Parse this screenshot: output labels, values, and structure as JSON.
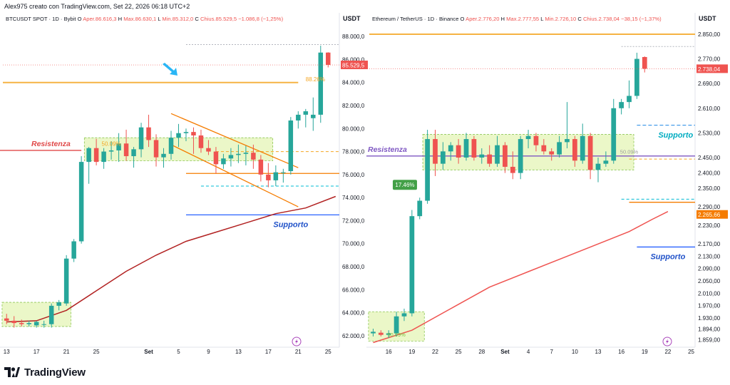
{
  "author_line": "Alex975 creato con TradingView.com, Set 22, 2026 06:18 UTC+2",
  "footer": {
    "brand": "TradingView"
  },
  "colors": {
    "up": "#26a69a",
    "down": "#ef5350",
    "orange": "#f5a623",
    "ma": "#b22222",
    "ma_eth": "#ef5350",
    "resist": "#e04848",
    "support_blue": "#2962ff",
    "cyan": "#00bcd4",
    "zone_fill": "#e9f7c3",
    "zone_stroke": "#7fbf3f",
    "purple": "#7e57c2"
  },
  "chart_data": [
    {
      "type": "candlestick",
      "header": {
        "symbol": "BTCUSDT SPOT · 1D · Bybit",
        "open_label": "O",
        "open": "Aper.86.616,3",
        "high_label": "H",
        "high": "Max.86.630,1",
        "low_label": "L",
        "low": "Min.85.312,0",
        "close_label": "C",
        "close": "Chius.85.529,5",
        "change": "−1.086,8 (−1,25%)"
      },
      "currency": "USDT",
      "ylim": [
        61000,
        89000
      ],
      "y_ticks": [
        {
          "v": 62000,
          "label": "62.000,0"
        },
        {
          "v": 64000,
          "label": "64.000,0"
        },
        {
          "v": 66000,
          "label": "66.000,0"
        },
        {
          "v": 68000,
          "label": "68.000,0"
        },
        {
          "v": 70000,
          "label": "70.000,0"
        },
        {
          "v": 72000,
          "label": "72.000,0"
        },
        {
          "v": 74000,
          "label": "74.000,0"
        },
        {
          "v": 76000,
          "label": "76.000,0"
        },
        {
          "v": 78000,
          "label": "78.000,0"
        },
        {
          "v": 80000,
          "label": "80.000,0"
        },
        {
          "v": 82000,
          "label": "82.000,0"
        },
        {
          "v": 84000,
          "label": "84.000,0"
        },
        {
          "v": 86000,
          "label": "86.000,0"
        },
        {
          "v": 88000,
          "label": "88.000,0"
        }
      ],
      "price_label": {
        "v": 85529.5,
        "text": "85.529,5"
      },
      "x_ticks": [
        {
          "i": 0,
          "label": "13"
        },
        {
          "i": 4,
          "label": "17"
        },
        {
          "i": 8,
          "label": "21"
        },
        {
          "i": 12,
          "label": "25"
        },
        {
          "i": 19,
          "label": "Set"
        },
        {
          "i": 23,
          "label": "5"
        },
        {
          "i": 27,
          "label": "9"
        },
        {
          "i": 31,
          "label": "13"
        },
        {
          "i": 35,
          "label": "17"
        },
        {
          "i": 39,
          "label": "21"
        },
        {
          "i": 43,
          "label": "25"
        }
      ],
      "candles": [
        [
          63500,
          63900,
          63000,
          63300
        ],
        [
          63300,
          63700,
          62700,
          63100
        ],
        [
          63100,
          63400,
          62800,
          63000
        ],
        [
          63000,
          63300,
          62800,
          63100
        ],
        [
          62900,
          63300,
          62700,
          63200
        ],
        [
          63000,
          63300,
          62700,
          63000
        ],
        [
          63000,
          64800,
          62700,
          64600
        ],
        [
          64600,
          65100,
          64200,
          64900
        ],
        [
          64800,
          69000,
          64600,
          68700
        ],
        [
          68700,
          70400,
          68400,
          70200
        ],
        [
          70200,
          77600,
          70000,
          77100
        ],
        [
          77100,
          78400,
          75200,
          78300
        ],
        [
          78300,
          79100,
          76800,
          77100
        ],
        [
          77100,
          78300,
          76500,
          78000
        ],
        [
          78000,
          78900,
          77300,
          78100
        ],
        [
          78100,
          79600,
          77100,
          78700
        ],
        [
          78700,
          79900,
          77200,
          77600
        ],
        [
          77600,
          78400,
          76600,
          78200
        ],
        [
          78200,
          80500,
          77500,
          80100
        ],
        [
          80100,
          81200,
          78400,
          79000
        ],
        [
          79000,
          79500,
          76700,
          77500
        ],
        [
          77500,
          78300,
          76600,
          77800
        ],
        [
          77800,
          79800,
          77300,
          79200
        ],
        [
          79200,
          80400,
          78400,
          79600
        ],
        [
          79600,
          80000,
          78900,
          79700
        ],
        [
          79700,
          80100,
          77800,
          79400
        ],
        [
          79400,
          79900,
          77900,
          78300
        ],
        [
          78300,
          79000,
          77700,
          78000
        ],
        [
          78000,
          78400,
          76100,
          76900
        ],
        [
          76900,
          77800,
          76500,
          77400
        ],
        [
          77400,
          78300,
          76700,
          77700
        ],
        [
          77700,
          78600,
          77000,
          77800
        ],
        [
          77800,
          78500,
          76800,
          77900
        ],
        [
          77900,
          78600,
          76500,
          77300
        ],
        [
          77300,
          77700,
          75400,
          76000
        ],
        [
          76000,
          77000,
          74900,
          75500
        ],
        [
          75500,
          76800,
          75000,
          76200
        ],
        [
          76200,
          76500,
          75300,
          76200
        ],
        [
          76300,
          81000,
          76000,
          80700
        ],
        [
          80700,
          81500,
          80000,
          81200
        ],
        [
          81200,
          81700,
          80100,
          81500
        ],
        [
          80900,
          82700,
          79800,
          81200
        ],
        [
          81200,
          87200,
          80500,
          86600
        ],
        [
          86600,
          86630,
          85312,
          85530
        ]
      ],
      "ma": [
        [
          0,
          63200
        ],
        [
          4,
          63300
        ],
        [
          8,
          64200
        ],
        [
          12,
          65900
        ],
        [
          16,
          67600
        ],
        [
          20,
          69000
        ],
        [
          24,
          70200
        ],
        [
          28,
          71000
        ],
        [
          32,
          71800
        ],
        [
          36,
          72600
        ],
        [
          40,
          73100
        ],
        [
          44,
          74100
        ]
      ],
      "annotations": {
        "resistenza": {
          "text": "Resistenza",
          "price": 78100
        },
        "supporto": {
          "text": "Supporto",
          "price": 72500
        },
        "orange_level": 84000,
        "pct_label": "88.26%",
        "zone_low_label": "50.09%",
        "upper_dotted": 87300,
        "orange_dashed": 78000,
        "cyan_dashed": 75000,
        "orange_level2": 76100,
        "zone": {
          "x0": 11,
          "x1": 35,
          "p0": 77200,
          "p1": 79200
        },
        "zone_small": {
          "x0": 0,
          "x1": 8,
          "p0": 62800,
          "p1": 64900
        },
        "channel_upper": [
          [
            22,
            81300
          ],
          [
            39,
            76600
          ]
        ],
        "channel_lower": [
          [
            22,
            78600
          ],
          [
            39,
            73200
          ]
        ]
      }
    },
    {
      "type": "candlestick",
      "header": {
        "symbol": "Ethereum / TetherUS · 1D · Binance",
        "open_label": "O",
        "open": "Aper.2.776,20",
        "high_label": "H",
        "high": "Max.2.777,55",
        "low_label": "L",
        "low": "Min.2.726,10",
        "close_label": "C",
        "close": "Chius.2.738,04",
        "change": "−38,15 (−1,37%)"
      },
      "currency": "USDT",
      "ylim": [
        1835,
        2880
      ],
      "y_ticks": [
        {
          "v": 1859,
          "label": "1.859,00"
        },
        {
          "v": 1894,
          "label": "1.894,00"
        },
        {
          "v": 1930,
          "label": "1.930,00"
        },
        {
          "v": 1970,
          "label": "1.970,00"
        },
        {
          "v": 2010,
          "label": "2.010,00"
        },
        {
          "v": 2050,
          "label": "2.050,00"
        },
        {
          "v": 2090,
          "label": "2.090,00"
        },
        {
          "v": 2130,
          "label": "2.130,00"
        },
        {
          "v": 2170,
          "label": "2.170,00"
        },
        {
          "v": 2230,
          "label": "2.230,00"
        },
        {
          "v": 2290,
          "label": "2.290,00"
        },
        {
          "v": 2350,
          "label": "2.350,00"
        },
        {
          "v": 2400,
          "label": "2.400,00"
        },
        {
          "v": 2450,
          "label": "2.450,00"
        },
        {
          "v": 2530,
          "label": "2.530,00"
        },
        {
          "v": 2610,
          "label": "2.610,00"
        },
        {
          "v": 2690,
          "label": "2.690,00"
        },
        {
          "v": 2770,
          "label": "2.770,00"
        },
        {
          "v": 2850,
          "label": "2.850,00"
        }
      ],
      "price_label": {
        "v": 2738.04,
        "text": "2.738,04"
      },
      "price_label2": {
        "v": 2265.66,
        "text": "2.265,66"
      },
      "x_ticks": [
        {
          "i": 2,
          "label": "16"
        },
        {
          "i": 5,
          "label": "19"
        },
        {
          "i": 8,
          "label": "22"
        },
        {
          "i": 11,
          "label": "25"
        },
        {
          "i": 14,
          "label": "28"
        },
        {
          "i": 17,
          "label": "Set"
        },
        {
          "i": 20,
          "label": "4"
        },
        {
          "i": 23,
          "label": "7"
        },
        {
          "i": 26,
          "label": "10"
        },
        {
          "i": 29,
          "label": "13"
        },
        {
          "i": 32,
          "label": "16"
        },
        {
          "i": 35,
          "label": "19"
        },
        {
          "i": 38,
          "label": "22"
        },
        {
          "i": 41,
          "label": "25"
        }
      ],
      "candles": [
        [
          1880,
          1895,
          1870,
          1885
        ],
        [
          1882,
          1890,
          1870,
          1875
        ],
        [
          1875,
          1890,
          1865,
          1880
        ],
        [
          1880,
          1950,
          1870,
          1935
        ],
        [
          1935,
          1960,
          1920,
          1945
        ],
        [
          1945,
          2280,
          1935,
          2260
        ],
        [
          2260,
          2320,
          2250,
          2310
        ],
        [
          2310,
          2540,
          2300,
          2510
        ],
        [
          2510,
          2540,
          2390,
          2430
        ],
        [
          2430,
          2500,
          2410,
          2470
        ],
        [
          2470,
          2500,
          2440,
          2490
        ],
        [
          2490,
          2510,
          2430,
          2450
        ],
        [
          2450,
          2530,
          2440,
          2510
        ],
        [
          2510,
          2520,
          2440,
          2450
        ],
        [
          2450,
          2480,
          2430,
          2460
        ],
        [
          2460,
          2490,
          2420,
          2430
        ],
        [
          2430,
          2520,
          2420,
          2490
        ],
        [
          2490,
          2500,
          2400,
          2420
        ],
        [
          2420,
          2470,
          2380,
          2400
        ],
        [
          2400,
          2520,
          2380,
          2510
        ],
        [
          2510,
          2540,
          2480,
          2520
        ],
        [
          2520,
          2530,
          2470,
          2490
        ],
        [
          2490,
          2510,
          2460,
          2470
        ],
        [
          2470,
          2480,
          2440,
          2460
        ],
        [
          2460,
          2520,
          2450,
          2500
        ],
        [
          2500,
          2630,
          2480,
          2510
        ],
        [
          2510,
          2520,
          2420,
          2440
        ],
        [
          2440,
          2560,
          2430,
          2520
        ],
        [
          2520,
          2530,
          2380,
          2410
        ],
        [
          2410,
          2450,
          2370,
          2430
        ],
        [
          2430,
          2470,
          2420,
          2440
        ],
        [
          2440,
          2640,
          2430,
          2610
        ],
        [
          2610,
          2640,
          2590,
          2630
        ],
        [
          2630,
          2700,
          2610,
          2650
        ],
        [
          2650,
          2790,
          2640,
          2770
        ],
        [
          2776,
          2778,
          2726,
          2738
        ]
      ],
      "ma": [
        [
          0,
          1850
        ],
        [
          5,
          1890
        ],
        [
          10,
          1960
        ],
        [
          15,
          2030
        ],
        [
          20,
          2080
        ],
        [
          25,
          2130
        ],
        [
          30,
          2180
        ],
        [
          33,
          2210
        ],
        [
          36,
          2250
        ],
        [
          38,
          2275
        ]
      ],
      "annotations": {
        "resistenza": {
          "text": "Resistenza",
          "price": 2455
        },
        "supporto": {
          "text": "Supporto",
          "price": 2160
        },
        "supporto_cyan": {
          "text": "Supporto",
          "price": 2545
        },
        "orange_level": 2850,
        "pct_label": "17.46%",
        "zone_low_label": "50.09%",
        "zone_label": "50.09%",
        "upper_dotted": 2810,
        "orange_dashed": 2445,
        "cyan_dashed": 2315,
        "cyan_dashed2": 2555,
        "orange_level2": 2305,
        "zone": {
          "x0": 7,
          "x1": 33,
          "p0": 2410,
          "p1": 2525
        },
        "zone_small": {
          "x0": 0,
          "x1": 6,
          "p0": 1855,
          "p1": 1950
        }
      }
    }
  ]
}
